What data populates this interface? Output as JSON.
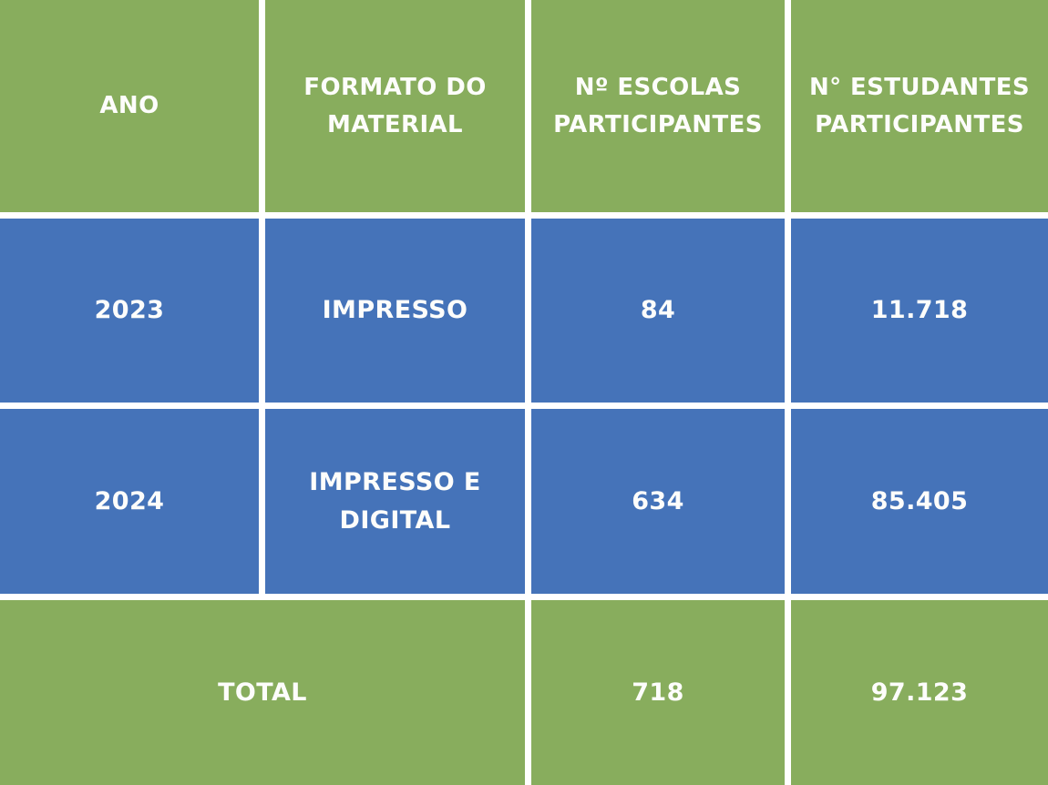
{
  "colors": {
    "header_footer_green": "#88AD5D",
    "data_row_blue": "#4573B9",
    "divider_white": "#FFFFFF",
    "text_white": "#FDFDFB"
  },
  "table": {
    "columns": [
      {
        "label": "ANO"
      },
      {
        "label": "FORMATO DO MATERIAL"
      },
      {
        "label": "Nº ESCOLAS PARTICIPANTES"
      },
      {
        "label": "N° ESTUDANTES PARTICIPANTES"
      }
    ],
    "rows": [
      {
        "ano": "2023",
        "formato": "IMPRESSO",
        "escolas": "84",
        "estudantes": "11.718"
      },
      {
        "ano": "2024",
        "formato": "IMPRESSO E DIGITAL",
        "escolas": "634",
        "estudantes": "85.405"
      }
    ],
    "footer": {
      "label": "TOTAL",
      "escolas": "718",
      "estudantes": "97.123"
    }
  },
  "chart_data": {
    "type": "table",
    "title": "",
    "columns": [
      "ANO",
      "FORMATO DO MATERIAL",
      "Nº ESCOLAS PARTICIPANTES",
      "N° ESTUDANTES PARTICIPANTES"
    ],
    "rows": [
      [
        "2023",
        "IMPRESSO",
        84,
        11718
      ],
      [
        "2024",
        "IMPRESSO E DIGITAL",
        634,
        85405
      ]
    ],
    "total_row": [
      "TOTAL",
      718,
      97123
    ],
    "displayed_numbers": {
      "escolas_2023": "84",
      "estudantes_2023": "11.718",
      "escolas_2024": "634",
      "estudantes_2024": "85.405",
      "escolas_total": "718",
      "estudantes_total": "97.123"
    },
    "layout": {
      "header_row_color": "#88AD5D",
      "data_row_color": "#4573B9",
      "total_row_color": "#88AD5D",
      "total_label_spans_columns": [
        1,
        2
      ]
    }
  }
}
